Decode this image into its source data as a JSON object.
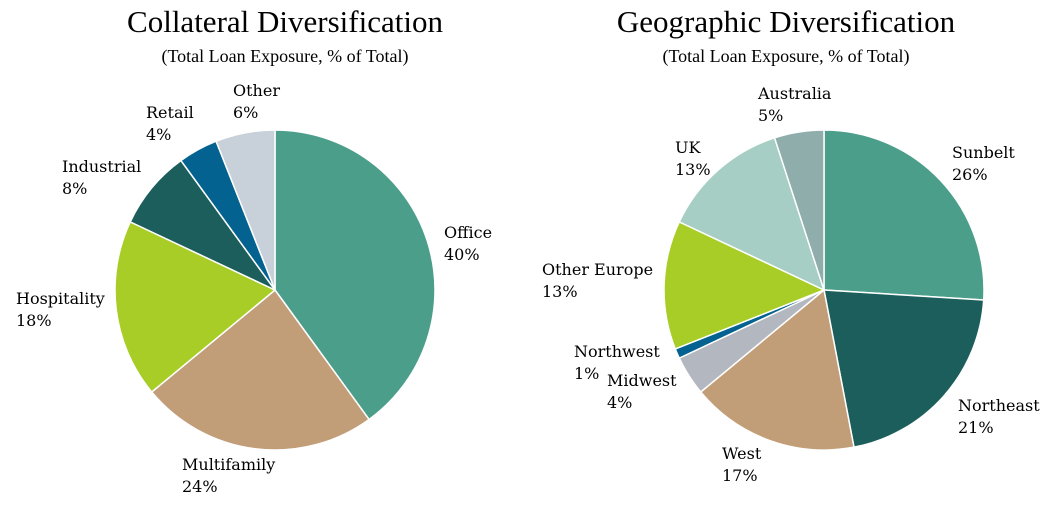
{
  "chart_data": [
    {
      "type": "pie",
      "title": "Collateral Diversification",
      "subtitle": "(Total Loan Exposure, % of Total)",
      "categories": [
        "Office",
        "Multifamily",
        "Hospitality",
        "Industrial",
        "Retail",
        "Other"
      ],
      "values": [
        40,
        24,
        18,
        8,
        4,
        6
      ],
      "labels": [
        "40%",
        "24%",
        "18%",
        "8%",
        "4%",
        "6%"
      ],
      "colors": [
        "#4b9e8a",
        "#c19d78",
        "#a8cd27",
        "#1c5e5b",
        "#03628f",
        "#c8d0da"
      ]
    },
    {
      "type": "pie",
      "title": "Geographic Diversification",
      "subtitle": "(Total Loan Exposure, % of Total)",
      "categories": [
        "Sunbelt",
        "Northeast",
        "West",
        "Midwest",
        "Northwest",
        "Other Europe",
        "UK",
        "Australia"
      ],
      "values": [
        26,
        21,
        17,
        4,
        1,
        13,
        13,
        5
      ],
      "labels": [
        "26%",
        "21%",
        "17%",
        "4%",
        "1%",
        "13%",
        "13%",
        "5%"
      ],
      "colors": [
        "#4b9e8a",
        "#1c5e5b",
        "#c19d78",
        "#b3b7bf",
        "#03628f",
        "#a8cd27",
        "#a6cec4",
        "#8fadab"
      ]
    }
  ]
}
